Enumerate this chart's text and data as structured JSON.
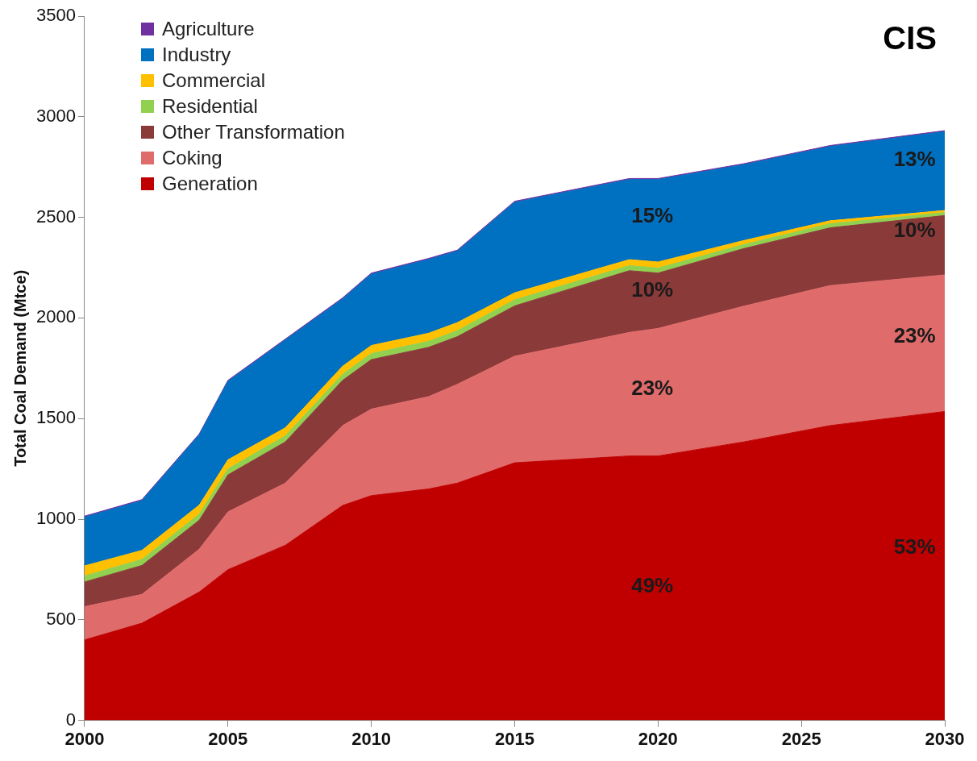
{
  "chart_data": {
    "type": "area",
    "stacked": true,
    "title": "CIS",
    "ylabel": "Total Coal Demand (Mtce)",
    "x": [
      2000,
      2002,
      2004,
      2005,
      2007,
      2009,
      2010,
      2012,
      2013,
      2015,
      2019,
      2020,
      2023,
      2026,
      2030
    ],
    "xlim": [
      2000,
      2030
    ],
    "xticks": [
      2000,
      2005,
      2010,
      2015,
      2020,
      2025,
      2030
    ],
    "ylim": [
      0,
      3500
    ],
    "yticks": [
      0,
      500,
      1000,
      1500,
      2000,
      2500,
      3000,
      3500
    ],
    "grid": false,
    "legend": "top left",
    "series": [
      {
        "name": "Generation",
        "color": "#c00000",
        "values": [
          400,
          483,
          638,
          749,
          870,
          1068,
          1117,
          1150,
          1179,
          1280,
          1314,
          1314,
          1384,
          1465,
          1535
        ]
      },
      {
        "name": "Coking",
        "color": "#e06b6b",
        "values": [
          165,
          143,
          213,
          287,
          309,
          397,
          430,
          459,
          491,
          530,
          614,
          634,
          675,
          696,
          679
        ]
      },
      {
        "name": "Other Transformation",
        "color": "#8b3a3a",
        "values": [
          123,
          144,
          144,
          184,
          205,
          225,
          246,
          245,
          237,
          250,
          307,
          275,
          286,
          287,
          295
        ]
      },
      {
        "name": "Residential",
        "color": "#92d050",
        "values": [
          30,
          30,
          30,
          30,
          30,
          30,
          30,
          30,
          30,
          30,
          25,
          25,
          20,
          20,
          15
        ]
      },
      {
        "name": "Commercial",
        "color": "#ffc000",
        "values": [
          50,
          45,
          45,
          45,
          40,
          40,
          40,
          40,
          40,
          35,
          30,
          30,
          20,
          15,
          10
        ]
      },
      {
        "name": "Industry",
        "color": "#0070c0",
        "values": [
          242,
          247,
          349,
          390,
          436,
          335,
          355,
          367,
          355,
          450,
          398,
          410,
          377,
          369,
          392
        ]
      },
      {
        "name": "Agriculture",
        "color": "#7030a0",
        "values": [
          5,
          5,
          5,
          5,
          5,
          5,
          5,
          5,
          5,
          5,
          5,
          5,
          5,
          5,
          5
        ]
      }
    ],
    "annotations": [
      "15%",
      "10%",
      "23%",
      "49%",
      "13%",
      "10%",
      "23%",
      "53%"
    ]
  }
}
